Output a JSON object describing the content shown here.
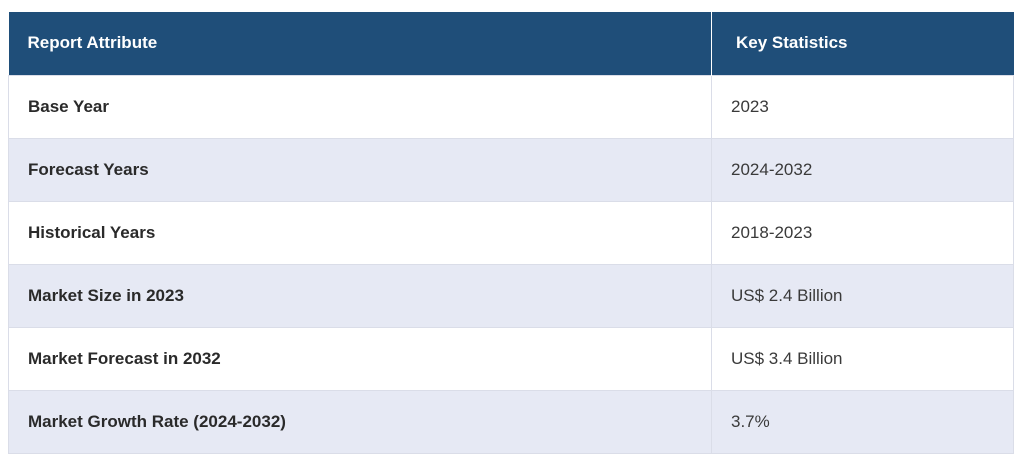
{
  "table": {
    "headers": [
      "Report Attribute",
      "Key Statistics"
    ],
    "rows": [
      {
        "attribute": "Base Year",
        "value": "2023"
      },
      {
        "attribute": "Forecast Years",
        "value": "2024-2032"
      },
      {
        "attribute": "Historical Years",
        "value": "2018-2023"
      },
      {
        "attribute": "Market Size in 2023",
        "value": "US$ 2.4 Billion"
      },
      {
        "attribute": "Market Forecast in 2032",
        "value": "US$ 3.4 Billion"
      },
      {
        "attribute": "Market Growth Rate (2024-2032)",
        "value": "3.7%"
      }
    ]
  },
  "colors": {
    "header_bg": "#1f4e79",
    "header_text": "#ffffff",
    "row_alt_bg": "#e6e9f4",
    "row_bg": "#ffffff"
  }
}
